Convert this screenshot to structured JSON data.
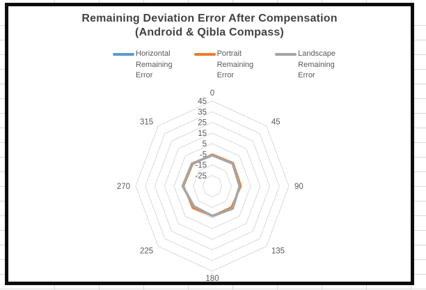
{
  "chart": {
    "title_line1": "Remaining Deviation Error After Compensation",
    "title_line2": "(Android & Qibla Compass)",
    "legend": [
      {
        "name": "Horizontal Remaining Error",
        "color": "#5B9BD5",
        "lines": [
          "Horizontal",
          "Remaining",
          "Error"
        ]
      },
      {
        "name": "Portrait Remaining Error",
        "color": "#ED7D31",
        "lines": [
          "Portrait",
          "Remaining",
          "Error"
        ]
      },
      {
        "name": "Landscape Remaining Error",
        "color": "#A5A5A5",
        "lines": [
          "Landscape",
          "Remaining",
          "Error"
        ]
      }
    ]
  },
  "chart_data": {
    "type": "radar",
    "title": "Remaining Deviation Error After Compensation (Android & Qibla Compass)",
    "categories": [
      "0",
      "45",
      "90",
      "135",
      "180",
      "225",
      "270",
      "315"
    ],
    "series": [
      {
        "name": "Horizontal Remaining Error",
        "color": "#5B9BD5",
        "stroke_width": 2.5,
        "values": [
          -6,
          -5,
          -6.5,
          -5,
          -7,
          -8,
          -4,
          -5
        ]
      },
      {
        "name": "Portrait Remaining Error",
        "color": "#ED7D31",
        "stroke_width": 2.5,
        "values": [
          -5,
          -4,
          -5,
          -7,
          -7,
          -6,
          -5,
          -6
        ]
      },
      {
        "name": "Landscape Remaining Error",
        "color": "#A5A5A5",
        "stroke_width": 3.5,
        "values": [
          -6,
          -5,
          -6.5,
          -5,
          -7,
          -8,
          -4,
          -5
        ]
      }
    ],
    "axis": {
      "min": -35,
      "max": 45,
      "major_unit": 10,
      "tick_labels": [
        "45",
        "35",
        "25",
        "15",
        "5",
        "-5",
        "-15",
        "-25"
      ],
      "tick_values": [
        45,
        35,
        25,
        15,
        5,
        -5,
        -15,
        -25
      ]
    },
    "gridline_color": "#D9D9D9",
    "label_color": "#595959",
    "grid": "polygon-rings-only",
    "legend_position": "top"
  }
}
